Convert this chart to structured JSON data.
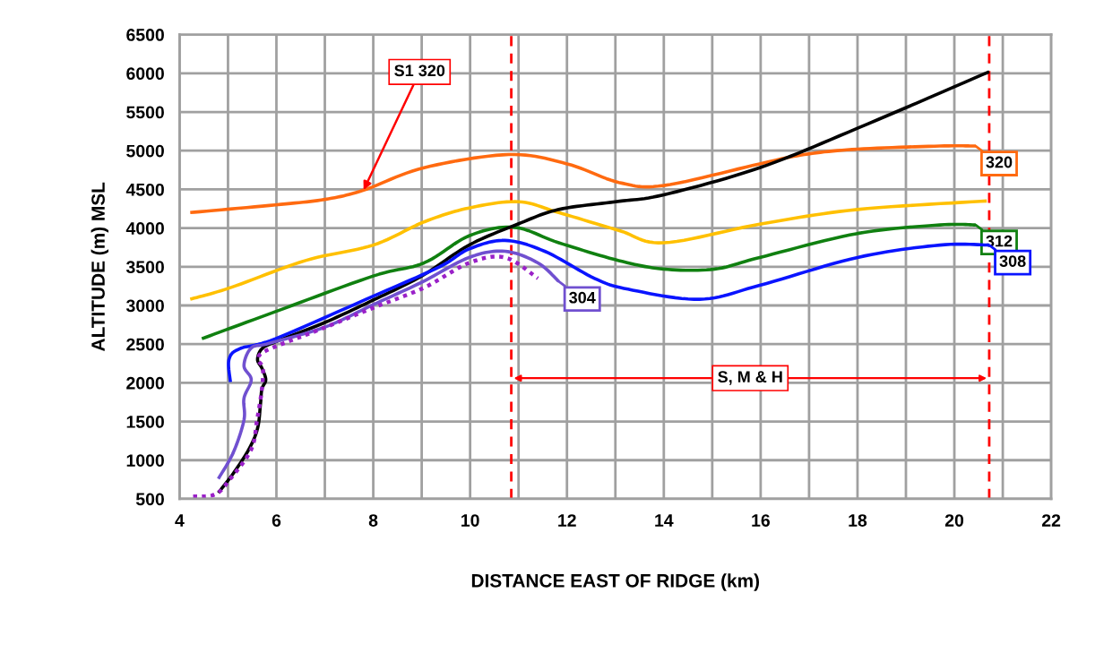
{
  "chart_data": {
    "type": "line",
    "xlabel": "DISTANCE EAST OF RIDGE (km)",
    "ylabel": "ALTITUDE (m) MSL",
    "xlim": [
      4,
      22
    ],
    "ylim": [
      500,
      6500
    ],
    "xticks": [
      4,
      {
        "value": 5,
        "label": null
      },
      6,
      {
        "value": 7,
        "label": null
      },
      8,
      {
        "value": 9,
        "label": null
      },
      10,
      {
        "value": 11,
        "label": null
      },
      12,
      {
        "value": 13,
        "label": null
      },
      14,
      {
        "value": 15,
        "label": null
      },
      16,
      {
        "value": 17,
        "label": null
      },
      18,
      {
        "value": 19,
        "label": null
      },
      20,
      {
        "value": 21,
        "label": null
      },
      22
    ],
    "yticks": [
      500,
      1000,
      1500,
      2000,
      2500,
      3000,
      3500,
      4000,
      4500,
      5000,
      5500,
      6000,
      6500
    ],
    "grid": true,
    "legend": "right",
    "marker": "none",
    "series": [
      {
        "name": "320",
        "color": "#ff6a10",
        "x": [
          4.22,
          5.98,
          7.0,
          7.8,
          9.05,
          10.8,
          12.0,
          13.07,
          14.0,
          15.98,
          16.9,
          18.0,
          19.7,
          20.44
        ],
        "values": [
          4200,
          4300,
          4370,
          4490,
          4780,
          4950,
          4830,
          4590,
          4550,
          4830,
          4950,
          5020,
          5060,
          5060
        ]
      },
      {
        "color": "#ffc000",
        "x": [
          4.22,
          5.05,
          6.6,
          8.0,
          9.05,
          9.98,
          11.0,
          11.83,
          13.07,
          14.0,
          15.98,
          18.0,
          20.67
        ],
        "values": [
          3080,
          3230,
          3580,
          3780,
          4080,
          4260,
          4340,
          4200,
          3970,
          3810,
          4050,
          4240,
          4350
        ]
      },
      {
        "name": "312",
        "color": "#108010",
        "x": [
          4.46,
          5.98,
          8.0,
          9.05,
          9.98,
          10.9,
          11.83,
          13.07,
          14.0,
          15.05,
          15.98,
          18.0,
          19.7,
          20.44
        ],
        "values": [
          2570,
          2920,
          3380,
          3550,
          3900,
          4010,
          3810,
          3580,
          3470,
          3470,
          3620,
          3930,
          4040,
          4040
        ]
      },
      {
        "color": "#000000",
        "x": [
          4.8,
          5.11,
          5.43,
          5.61,
          5.67,
          5.7,
          5.78,
          5.7,
          5.61,
          5.7,
          5.98,
          7.0,
          8.0,
          9.0,
          9.98,
          10.98,
          11.83,
          13.0,
          14.0,
          15.98,
          18.0,
          20.72
        ],
        "values": [
          580,
          830,
          1140,
          1410,
          1720,
          1920,
          2040,
          2190,
          2300,
          2440,
          2530,
          2780,
          3070,
          3380,
          3780,
          4050,
          4240,
          4340,
          4430,
          4780,
          5290,
          6020
        ]
      },
      {
        "name": "308",
        "color": "#0a14ff",
        "x": [
          5.05,
          5.02,
          5.24,
          5.98,
          8.0,
          9.37,
          9.98,
          10.72,
          11.54,
          12.57,
          13.26,
          14.74,
          15.98,
          18.0,
          19.7,
          20.72
        ],
        "values": [
          2010,
          2300,
          2440,
          2570,
          3120,
          3500,
          3730,
          3840,
          3700,
          3350,
          3210,
          3080,
          3260,
          3620,
          3780,
          3780
        ]
      },
      {
        "name": "304",
        "color": "#7050d0",
        "x": [
          4.8,
          5.11,
          5.33,
          5.33,
          5.48,
          5.33,
          5.48,
          5.85,
          7.0,
          8.0,
          9.0,
          9.98,
          10.72,
          11.4,
          11.83
        ],
        "values": [
          760,
          1100,
          1520,
          1800,
          2040,
          2220,
          2450,
          2510,
          2720,
          3010,
          3300,
          3620,
          3700,
          3550,
          3310
        ]
      },
      {
        "color": "#9a20c8",
        "line_style": "dotted",
        "x": [
          4.28,
          4.74,
          5.05,
          5.48,
          5.6,
          5.7,
          5.72,
          5.63,
          5.8,
          6.9,
          8.0,
          9.05,
          9.98,
          10.72,
          11.4
        ],
        "values": [
          530,
          560,
          760,
          1140,
          1520,
          1920,
          2190,
          2300,
          2420,
          2690,
          2970,
          3230,
          3550,
          3620,
          3350
        ]
      }
    ],
    "ref_lines": [
      {
        "axis": "x",
        "value": 10.85,
        "color": "#ff0000",
        "line_style": "dashed"
      },
      {
        "axis": "x",
        "value": 20.72,
        "color": "#ff0000",
        "line_style": "dashed"
      }
    ],
    "annotations": [
      {
        "text": "S1 320",
        "x": 7.8,
        "y": 4490
      },
      "S, M & H"
    ]
  }
}
